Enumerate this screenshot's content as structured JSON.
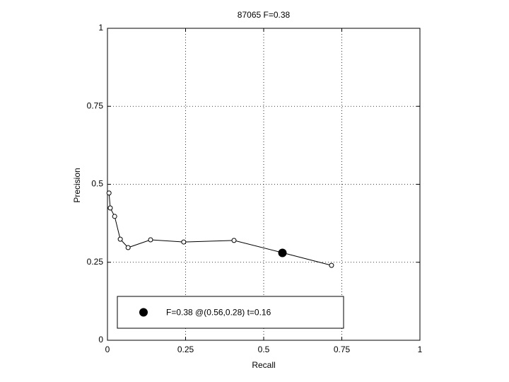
{
  "chart_data": {
    "type": "line",
    "title": "87065 F=0.38",
    "xlabel": "Recall",
    "ylabel": "Precision",
    "xlim": [
      0,
      1
    ],
    "ylim": [
      0,
      1
    ],
    "xticks": [
      0,
      0.25,
      0.5,
      0.75,
      1
    ],
    "yticks": [
      0,
      0.25,
      0.5,
      0.75,
      1
    ],
    "grid": true,
    "series": [
      {
        "color": "#000000",
        "marker": "open-circle",
        "x": [
          0.005,
          0.009,
          0.023,
          0.041,
          0.066,
          0.138,
          0.244,
          0.405,
          0.559,
          0.717
        ],
        "values": [
          0.472,
          0.424,
          0.397,
          0.324,
          0.297,
          0.322,
          0.315,
          0.32,
          0.281,
          0.24
        ]
      },
      {
        "name": "F=0.38 @(0.56,0.28) t=0.16",
        "color": "#000000",
        "marker": "filled-circle",
        "x": [
          0.56
        ],
        "values": [
          0.28
        ]
      }
    ],
    "legend": "lower-left"
  }
}
